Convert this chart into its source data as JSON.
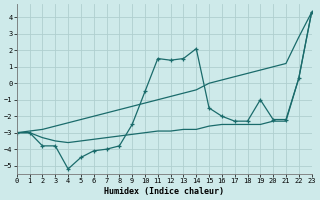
{
  "xlabel": "Humidex (Indice chaleur)",
  "bg_color": "#ceeaea",
  "grid_color": "#b0cfcf",
  "line_color": "#1a6b6b",
  "xlim": [
    0,
    23
  ],
  "ylim": [
    -5.5,
    4.8
  ],
  "yticks": [
    -5,
    -4,
    -3,
    -2,
    -1,
    0,
    1,
    2,
    3,
    4
  ],
  "xticks": [
    0,
    1,
    2,
    3,
    4,
    5,
    6,
    7,
    8,
    9,
    10,
    11,
    12,
    13,
    14,
    15,
    16,
    17,
    18,
    19,
    20,
    21,
    22,
    23
  ],
  "line_spiky_x": [
    0,
    1,
    2,
    3,
    4,
    5,
    6,
    7,
    8,
    9,
    10,
    11,
    12,
    13,
    14,
    15,
    16,
    17,
    18,
    19,
    20,
    21,
    22,
    23
  ],
  "line_spiky_y": [
    -3.0,
    -3.0,
    -3.8,
    -3.8,
    -5.2,
    -4.5,
    -4.1,
    -4.0,
    -3.8,
    -2.5,
    -0.5,
    1.5,
    1.4,
    1.5,
    2.1,
    -1.5,
    -2.0,
    -2.3,
    -2.3,
    -1.0,
    -2.2,
    -2.2,
    0.3,
    4.3
  ],
  "line_upper_x": [
    0,
    1,
    2,
    3,
    4,
    5,
    6,
    7,
    8,
    9,
    10,
    11,
    12,
    13,
    14,
    15,
    16,
    17,
    18,
    19,
    20,
    21,
    22,
    23
  ],
  "line_upper_y": [
    -3.0,
    -2.9,
    -2.8,
    -2.6,
    -2.4,
    -2.2,
    -2.0,
    -1.8,
    -1.6,
    -1.4,
    -1.2,
    -1.0,
    -0.8,
    -0.6,
    -0.4,
    0.0,
    0.2,
    0.4,
    0.6,
    0.8,
    1.0,
    1.2,
    2.8,
    4.3
  ],
  "line_lower_x": [
    0,
    1,
    2,
    3,
    4,
    5,
    6,
    7,
    8,
    9,
    10,
    11,
    12,
    13,
    14,
    15,
    16,
    17,
    18,
    19,
    20,
    21,
    22,
    23
  ],
  "line_lower_y": [
    -3.0,
    -3.0,
    -3.3,
    -3.5,
    -3.6,
    -3.5,
    -3.4,
    -3.3,
    -3.2,
    -3.1,
    -3.0,
    -2.9,
    -2.9,
    -2.8,
    -2.8,
    -2.6,
    -2.5,
    -2.5,
    -2.5,
    -2.5,
    -2.3,
    -2.3,
    0.3,
    4.3
  ]
}
